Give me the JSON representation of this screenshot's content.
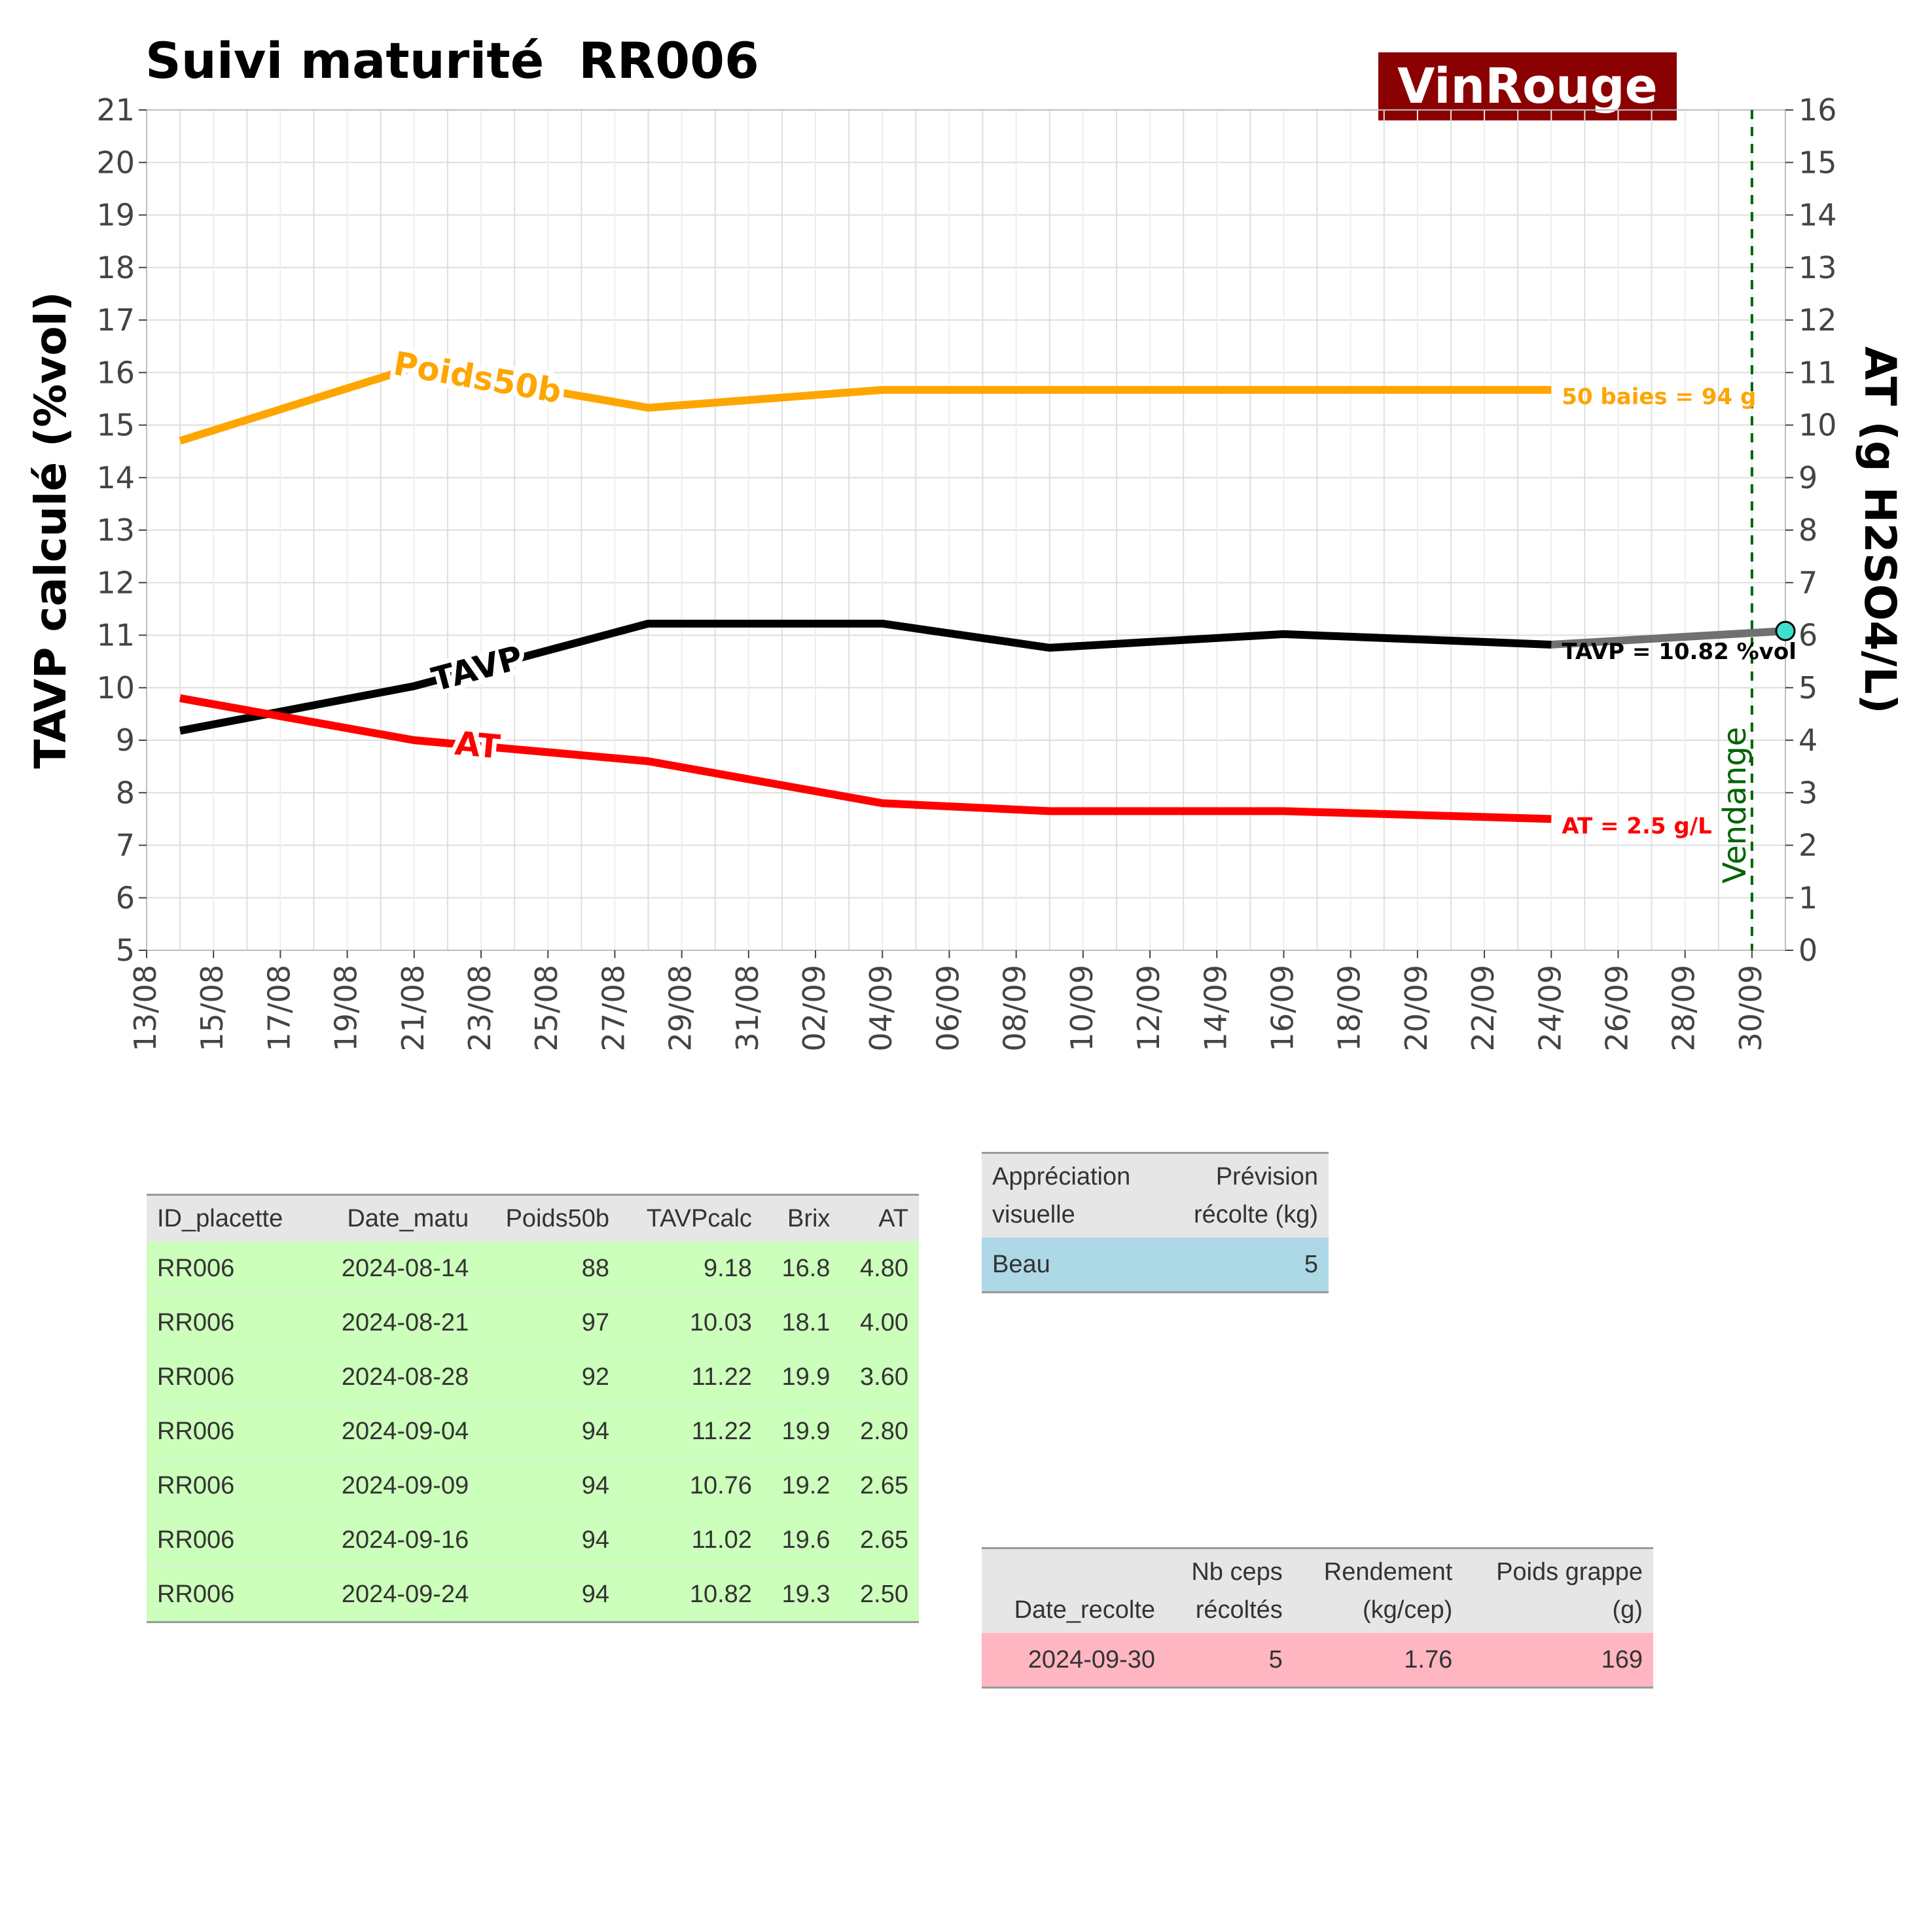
{
  "title": "Suivi maturité  RR006",
  "brand": "VinRouge",
  "chart_data": {
    "type": "line",
    "ylabel": "TAVP calculé (%vol)",
    "y2label": "AT (g H2SO4/L)",
    "xlim": [
      "2024-08-13",
      "2024-10-01"
    ],
    "ylim": [
      5,
      21
    ],
    "y2lim": [
      0,
      16
    ],
    "x_ticks": [
      "13/08",
      "15/08",
      "17/08",
      "19/08",
      "21/08",
      "23/08",
      "25/08",
      "27/08",
      "29/08",
      "31/08",
      "02/09",
      "04/09",
      "06/09",
      "08/09",
      "10/09",
      "12/09",
      "14/09",
      "16/09",
      "18/09",
      "20/09",
      "22/09",
      "24/09",
      "26/09",
      "28/09",
      "30/09"
    ],
    "y_ticks": [
      5,
      6,
      7,
      8,
      9,
      10,
      11,
      12,
      13,
      14,
      15,
      16,
      17,
      18,
      19,
      20,
      21
    ],
    "y2_ticks": [
      0,
      1,
      2,
      3,
      4,
      5,
      6,
      7,
      8,
      9,
      10,
      11,
      12,
      13,
      14,
      15,
      16
    ],
    "grid": true,
    "x": [
      "2024-08-14",
      "2024-08-21",
      "2024-08-28",
      "2024-09-04",
      "2024-09-09",
      "2024-09-16",
      "2024-09-24"
    ],
    "series": [
      {
        "name": "Poids50b",
        "axis": "left",
        "color": "#ffa500",
        "values": [
          14.7,
          16.1,
          15.33,
          15.67,
          15.67,
          15.67,
          15.67
        ],
        "end_label": "50 baies = 94 g"
      },
      {
        "name": "TAVP",
        "axis": "left",
        "color": "#000000",
        "values": [
          9.18,
          10.03,
          11.22,
          11.22,
          10.76,
          11.02,
          10.82
        ],
        "end_label": "TAVP = 10.82 %vol"
      },
      {
        "name": "AT",
        "axis": "right",
        "color": "#ff0000",
        "values": [
          4.8,
          4.0,
          3.6,
          2.8,
          2.65,
          2.65,
          2.5
        ],
        "end_label": "AT = 2.5 g/L"
      }
    ],
    "projection": {
      "color": "#707070",
      "x": [
        "2024-09-24",
        "2024-10-01"
      ],
      "values": [
        10.82,
        11.08
      ],
      "point_color": "#40e0d0"
    },
    "harvest_line": {
      "x": "2024-09-30",
      "label": "Vendange",
      "color": "#006400"
    }
  },
  "maturity_table": {
    "headers": [
      "ID_placette",
      "Date_matu",
      "Poids50b",
      "TAVPcalc",
      "Brix",
      "AT"
    ],
    "rows": [
      [
        "RR006",
        "2024-08-14",
        "88",
        "9.18",
        "16.8",
        "4.80"
      ],
      [
        "RR006",
        "2024-08-21",
        "97",
        "10.03",
        "18.1",
        "4.00"
      ],
      [
        "RR006",
        "2024-08-28",
        "92",
        "11.22",
        "19.9",
        "3.60"
      ],
      [
        "RR006",
        "2024-09-04",
        "94",
        "11.22",
        "19.9",
        "2.80"
      ],
      [
        "RR006",
        "2024-09-09",
        "94",
        "10.76",
        "19.2",
        "2.65"
      ],
      [
        "RR006",
        "2024-09-16",
        "94",
        "11.02",
        "19.6",
        "2.65"
      ],
      [
        "RR006",
        "2024-09-24",
        "94",
        "10.82",
        "19.3",
        "2.50"
      ]
    ]
  },
  "visual_table": {
    "headers": [
      [
        "Appréciation",
        "visuelle"
      ],
      [
        "Prévision",
        "récolte (kg)"
      ]
    ],
    "rows": [
      [
        "Beau",
        "5"
      ]
    ]
  },
  "harvest_table": {
    "headers": [
      [
        "",
        "Date_recolte"
      ],
      [
        "Nb ceps",
        "récoltés"
      ],
      [
        "Rendement",
        "(kg/cep)"
      ],
      [
        "Poids grappe",
        "(g)"
      ]
    ],
    "rows": [
      [
        "2024-09-30",
        "5",
        "1.76",
        "169"
      ]
    ]
  }
}
